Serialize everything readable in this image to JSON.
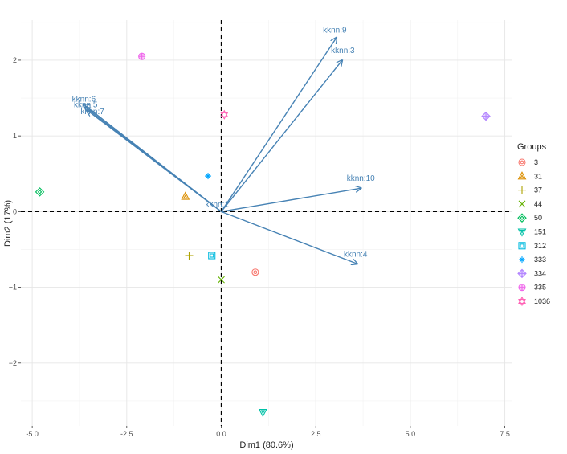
{
  "chart_data": {
    "type": "scatter",
    "subtype": "pca-biplot",
    "title": "",
    "xlabel": "Dim1 (80.6%)",
    "ylabel": "Dim2 (17%)",
    "xlim": [
      -5.3,
      7.7
    ],
    "ylim": [
      -2.83,
      2.53
    ],
    "x_ticks": [
      -5.0,
      -2.5,
      0.0,
      2.5,
      5.0,
      7.5
    ],
    "x_tick_labels": [
      "-5.0",
      "-2.5",
      "0.0",
      "2.5",
      "5.0",
      "7.5"
    ],
    "y_ticks": [
      -2,
      -1,
      0,
      1,
      2
    ],
    "y_tick_labels": [
      "−2",
      "−1",
      "0",
      "1",
      "2"
    ],
    "grid": true,
    "reference_lines": {
      "x": 0,
      "y": 0,
      "style": "dashed"
    },
    "legend": {
      "title": "Groups",
      "placement": "right"
    },
    "points": [
      {
        "group": "3",
        "x": 0.9,
        "y": -0.8,
        "shape": "circle-open",
        "color": "#F8766D"
      },
      {
        "group": "31",
        "x": -0.95,
        "y": 0.2,
        "shape": "triangle-up",
        "color": "#DB8E00"
      },
      {
        "group": "37",
        "x": -0.85,
        "y": -0.58,
        "shape": "plus",
        "color": "#AEA200"
      },
      {
        "group": "44",
        "x": 0.0,
        "y": -0.9,
        "shape": "cross",
        "color": "#64B200"
      },
      {
        "group": "50",
        "x": -4.8,
        "y": 0.26,
        "shape": "diamond",
        "color": "#00BD5C"
      },
      {
        "group": "151",
        "x": 1.1,
        "y": -2.65,
        "shape": "triangle-down",
        "color": "#00C1A7"
      },
      {
        "group": "312",
        "x": -0.25,
        "y": -0.58,
        "shape": "square-cross",
        "color": "#00BADE"
      },
      {
        "group": "333",
        "x": -0.35,
        "y": 0.47,
        "shape": "asterisk",
        "color": "#00A6FF"
      },
      {
        "group": "334",
        "x": 7.0,
        "y": 1.26,
        "shape": "diamond-plus",
        "color": "#B385FF"
      },
      {
        "group": "335",
        "x": -2.1,
        "y": 2.05,
        "shape": "circle-plus",
        "color": "#EF67EB"
      },
      {
        "group": "1036",
        "x": 0.08,
        "y": 1.28,
        "shape": "star",
        "color": "#FF63B6"
      }
    ],
    "arrows": [
      {
        "label": "kknn:1",
        "x": 0.0,
        "y": 0.0
      },
      {
        "label": "kknn:3",
        "x": 3.2,
        "y": 2.0
      },
      {
        "label": "kknn:9",
        "x": 3.05,
        "y": 2.3
      },
      {
        "label": "kknn:10",
        "x": 3.7,
        "y": 0.31
      },
      {
        "label": "kknn:4",
        "x": 3.6,
        "y": -0.69
      },
      {
        "label": "kknn:6",
        "x": -3.65,
        "y": 1.42
      },
      {
        "label": "kknn:5",
        "x": -3.6,
        "y": 1.38
      },
      {
        "label": "kknn:7",
        "x": -3.55,
        "y": 1.34
      }
    ],
    "arrow_color": "#4682B4"
  }
}
